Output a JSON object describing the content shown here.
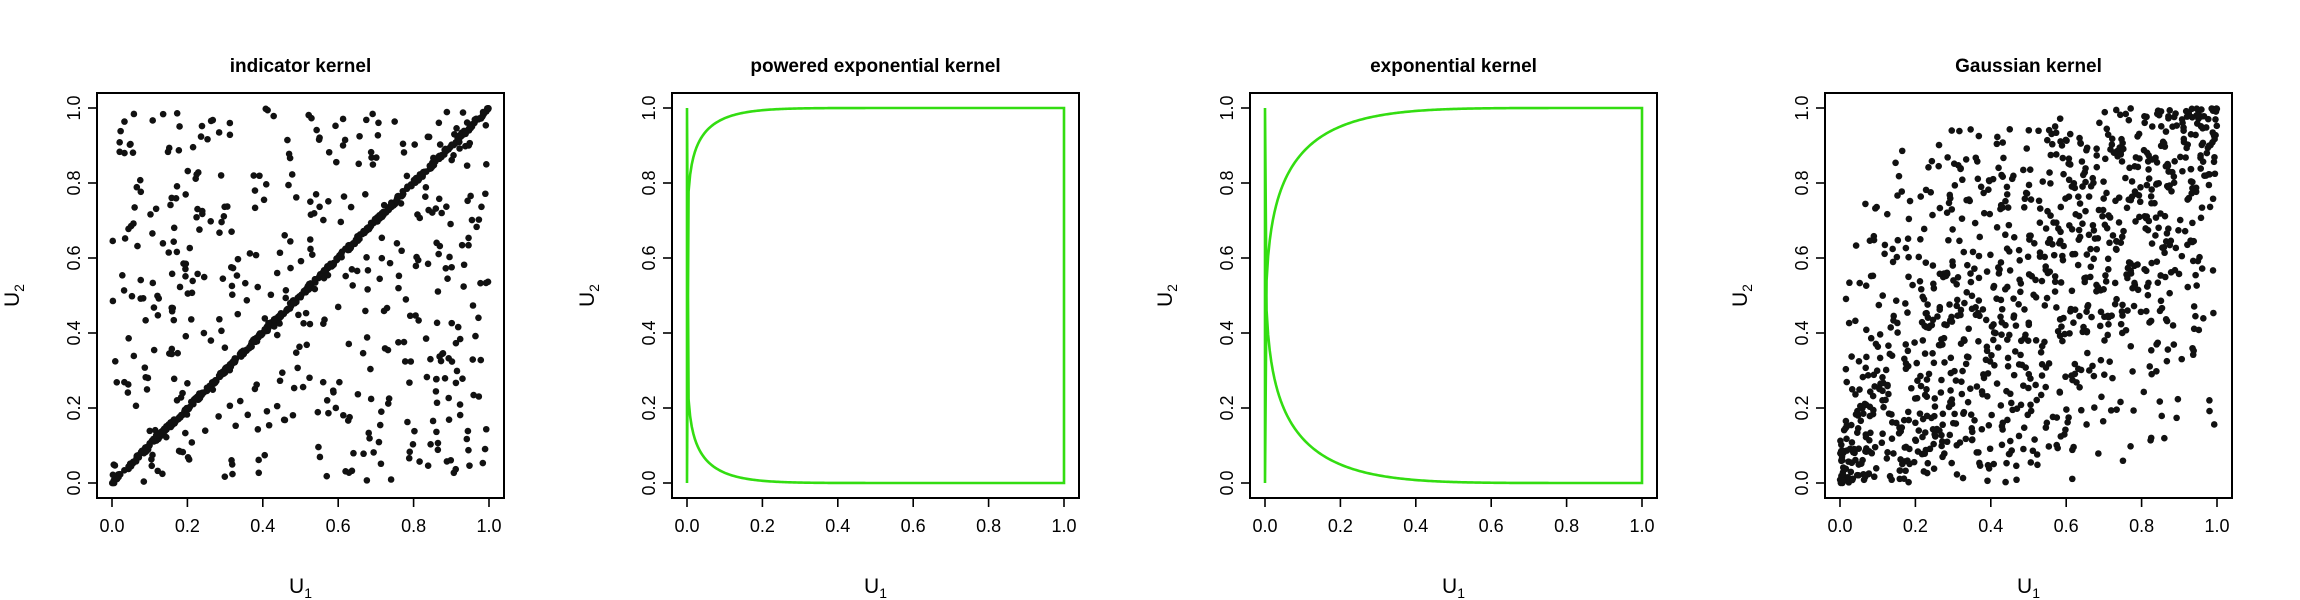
{
  "chart_data": [
    {
      "type": "scatter",
      "title": "indicator kernel",
      "xlabel": "U",
      "xlabel_sub": "1",
      "ylabel": "U",
      "ylabel_sub": "2",
      "xlim": [
        0,
        1
      ],
      "ylim": [
        0,
        1
      ],
      "xticks": [
        "0.0",
        "0.2",
        "0.4",
        "0.6",
        "0.8",
        "1.0"
      ],
      "yticks": [
        "0.0",
        "0.2",
        "0.4",
        "0.6",
        "0.8",
        "1.0"
      ],
      "point_color": "#111111",
      "pattern": {
        "kind": "diagonal_plus_uniform",
        "n_diag": 500,
        "n_uniform": 460,
        "seed": 11
      },
      "boundary_curve": null
    },
    {
      "type": "scatter",
      "title": "powered exponential kernel",
      "xlabel": "U",
      "xlabel_sub": "1",
      "ylabel": "U",
      "ylabel_sub": "2",
      "xlim": [
        0,
        1
      ],
      "ylim": [
        0,
        1
      ],
      "xticks": [
        "0.0",
        "0.2",
        "0.4",
        "0.6",
        "0.8",
        "1.0"
      ],
      "yticks": [
        "0.0",
        "0.2",
        "0.4",
        "0.6",
        "0.8",
        "1.0"
      ],
      "point_color": "#111111",
      "pattern": {
        "kind": "superellipse",
        "exponent": 12,
        "rho": 0.7,
        "n": 1300,
        "seed": 23
      },
      "boundary_curve": {
        "color": "#33dd11",
        "exponent": 12
      }
    },
    {
      "type": "scatter",
      "title": "exponential kernel",
      "xlabel": "U",
      "xlabel_sub": "1",
      "ylabel": "U",
      "ylabel_sub": "2",
      "xlim": [
        0,
        1
      ],
      "ylim": [
        0,
        1
      ],
      "xticks": [
        "0.0",
        "0.2",
        "0.4",
        "0.6",
        "0.8",
        "1.0"
      ],
      "yticks": [
        "0.0",
        "0.2",
        "0.4",
        "0.6",
        "0.8",
        "1.0"
      ],
      "point_color": "#111111",
      "pattern": {
        "kind": "superellipse",
        "exponent": 6,
        "rho": 0.35,
        "n": 1500,
        "seed": 37
      },
      "boundary_curve": {
        "color": "#33dd11",
        "exponent": 6
      }
    },
    {
      "type": "scatter",
      "title": "Gaussian kernel",
      "xlabel": "U",
      "xlabel_sub": "1",
      "ylabel": "U",
      "ylabel_sub": "2",
      "xlim": [
        0,
        1
      ],
      "ylim": [
        0,
        1
      ],
      "xticks": [
        "0.0",
        "0.2",
        "0.4",
        "0.6",
        "0.8",
        "1.0"
      ],
      "yticks": [
        "0.0",
        "0.2",
        "0.4",
        "0.6",
        "0.8",
        "1.0"
      ],
      "point_color": "#111111",
      "pattern": {
        "kind": "gaussian_copula",
        "rho": 0.6,
        "n": 1100,
        "seed": 53
      },
      "boundary_curve": null
    }
  ]
}
